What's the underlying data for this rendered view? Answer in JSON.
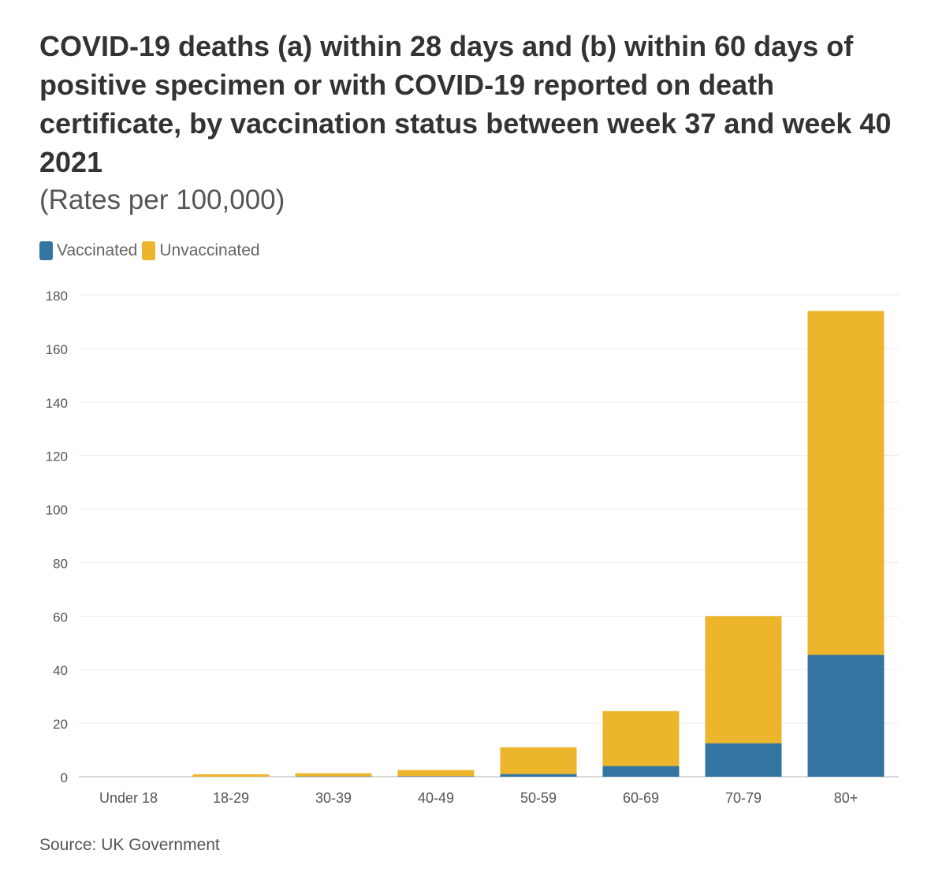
{
  "chart_data": {
    "type": "bar",
    "stacked": true,
    "title": "COVID-19 deaths (a) within 28 days and (b) within 60 days of positive specimen or with COVID-19 reported on death certificate, by vaccination status between week 37 and week 40 2021",
    "subtitle": "(Rates per 100,000)",
    "categories": [
      "Under 18",
      "18-29",
      "30-39",
      "40-49",
      "50-59",
      "60-69",
      "70-79",
      "80+"
    ],
    "series": [
      {
        "name": "Vaccinated",
        "color": "#3374a0",
        "values": [
          0,
          0,
          0.1,
          0.2,
          1,
          4,
          12.5,
          45.5
        ]
      },
      {
        "name": "Unvaccinated",
        "color": "#ecb52b",
        "values": [
          0,
          0.9,
          1.2,
          2.3,
          10,
          20.5,
          47.5,
          128.5
        ]
      }
    ],
    "y_ticks": [
      0,
      20,
      40,
      60,
      80,
      100,
      120,
      140,
      160,
      180
    ],
    "ylim": [
      0,
      180
    ],
    "xlabel": "",
    "ylabel": "",
    "grid": true,
    "legend_position": "top-left",
    "source": "Source: UK Government"
  }
}
